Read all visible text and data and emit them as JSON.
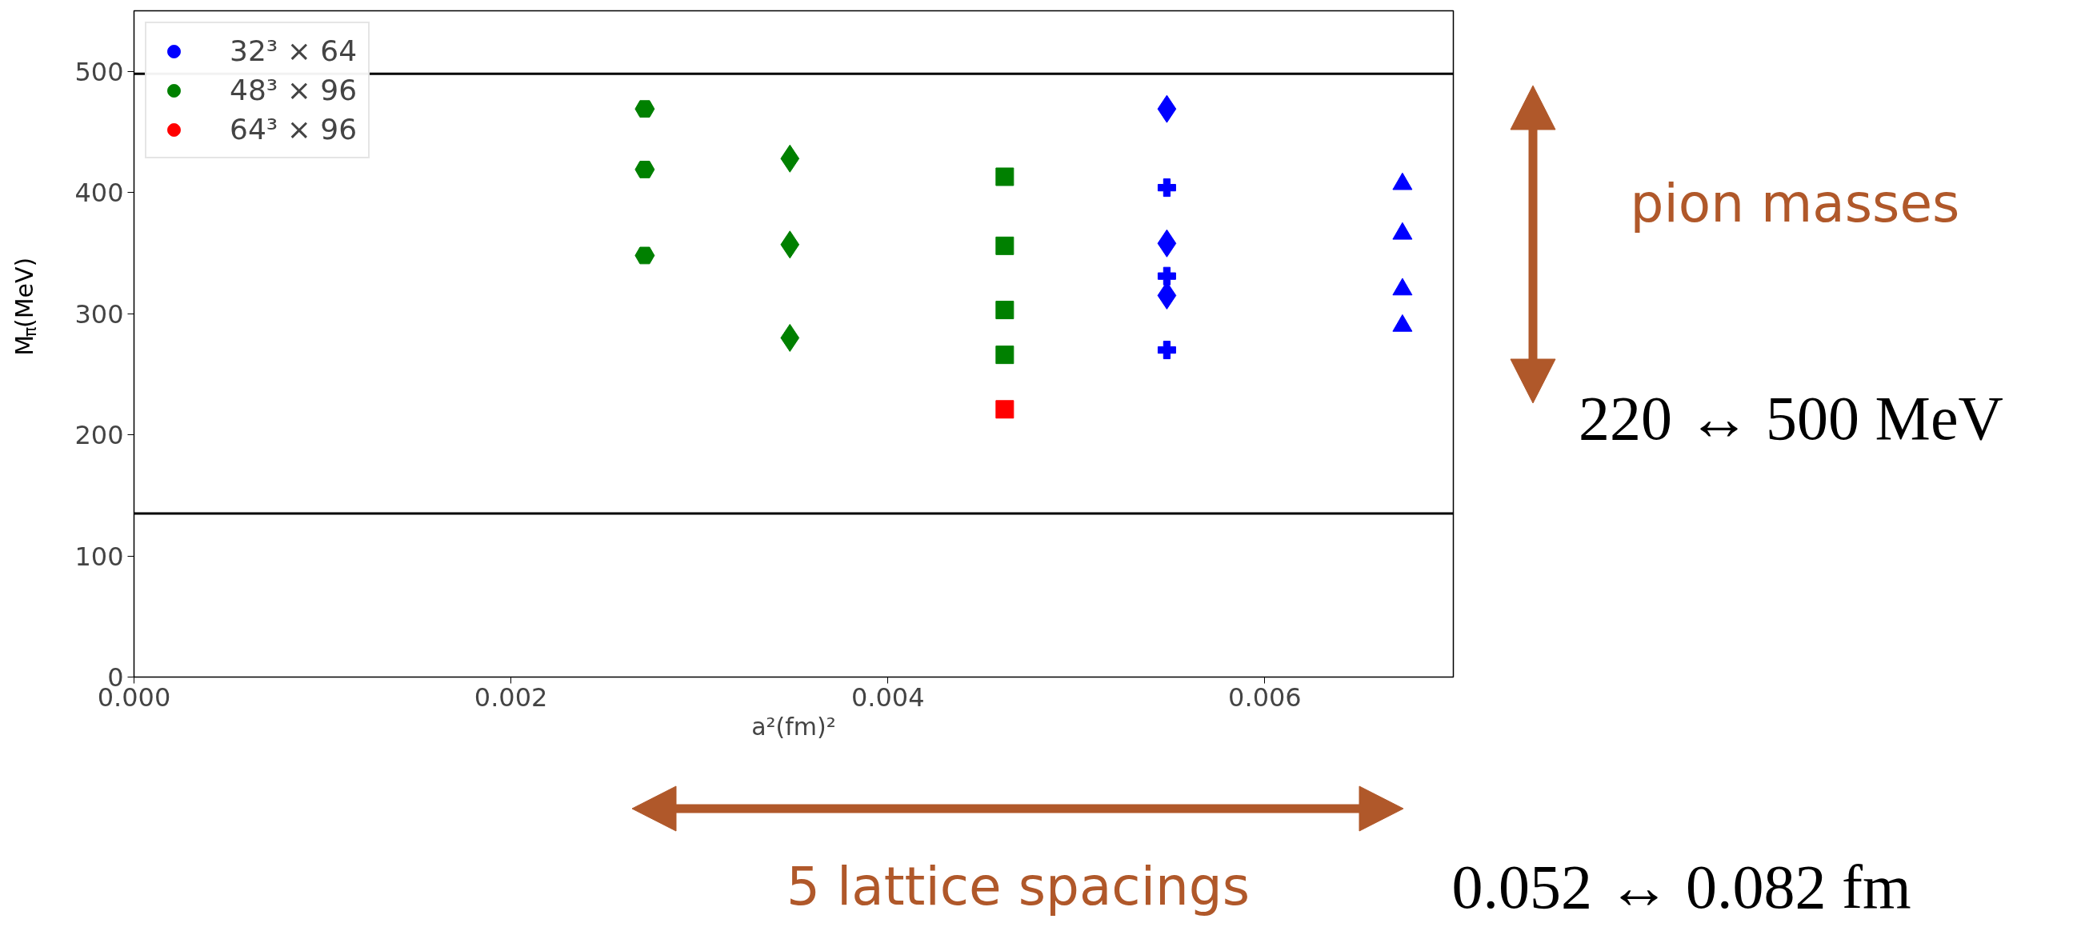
{
  "chart_data": {
    "type": "scatter",
    "xlabel": "a²(fm)²",
    "ylabel": "M$_{π}$(MeV)",
    "xlim": [
      0,
      0.007
    ],
    "ylim": [
      0,
      550
    ],
    "xticks": [
      {
        "value": 0,
        "label": "0.000"
      },
      {
        "value": 0.002,
        "label": "0.002"
      },
      {
        "value": 0.004,
        "label": "0.004"
      },
      {
        "value": 0.006,
        "label": "0.006"
      }
    ],
    "yticks": [
      0,
      100,
      200,
      300,
      400,
      500
    ],
    "grid": false,
    "legend": "top left",
    "series": [
      {
        "name": "32³ × 64",
        "color": "#0000ff",
        "marker": "diamond",
        "x": [
          0.00548,
          0.00548,
          0.00548
        ],
        "values": [
          469,
          358,
          315
        ]
      },
      {
        "name": "48³ × 96",
        "color": "#008000",
        "marker": "circle",
        "x": [
          0.00271,
          0.00271,
          0.00271
        ],
        "values": [
          469,
          419,
          348
        ]
      },
      {
        "name": "64³ × 96",
        "color": "#ff0000",
        "marker": "square",
        "x": [
          0.00462
        ],
        "values": [
          221
        ]
      },
      {
        "color": "#008000",
        "marker": "diamond",
        "x": [
          0.00348,
          0.00348,
          0.00348
        ],
        "values": [
          428,
          357,
          280
        ]
      },
      {
        "color": "#008000",
        "marker": "square",
        "x": [
          0.00462,
          0.00462,
          0.00462,
          0.00462
        ],
        "values": [
          413,
          356,
          303,
          266
        ]
      },
      {
        "color": "#0000ff",
        "marker": "cross",
        "x": [
          0.00548,
          0.00548,
          0.00548
        ],
        "values": [
          404,
          331,
          270
        ]
      },
      {
        "color": "#0000ff",
        "marker": "triangle",
        "x": [
          0.00673,
          0.00673,
          0.00673,
          0.00673
        ],
        "values": [
          407,
          366,
          320,
          290
        ]
      }
    ],
    "ref_lines": [
      {
        "axis": "y",
        "value": 498,
        "color": "#000000"
      },
      {
        "axis": "y",
        "value": 135,
        "color": "#000000"
      }
    ],
    "annotations": [
      "pion masses",
      "220 ↔ 500 MeV",
      "5 lattice spacings",
      "0.052 ↔ 0.082 fm"
    ]
  }
}
